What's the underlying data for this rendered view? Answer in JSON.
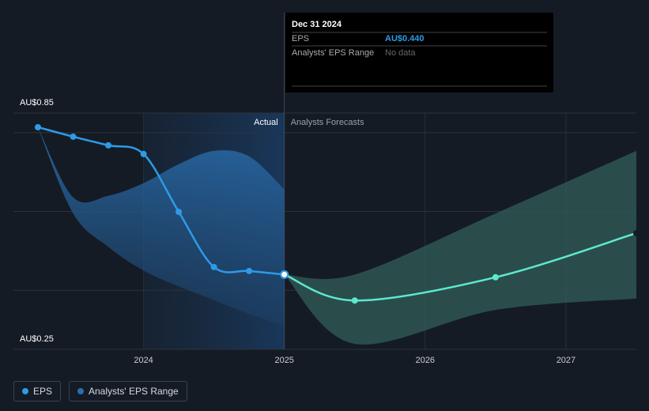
{
  "chart_data": {
    "type": "line",
    "x": [
      2023.25,
      2023.5,
      2023.75,
      2024,
      2024.25,
      2024.5,
      2024.75,
      2025
    ],
    "series": [
      {
        "name": "EPS",
        "color": "#2d9be8",
        "values": [
          0.814,
          0.79,
          0.768,
          0.746,
          0.599,
          0.459,
          0.449,
          0.44
        ]
      }
    ],
    "forecast": {
      "x": [
        2025,
        2025.5,
        2026.5,
        2027.5
      ],
      "values": [
        0.44,
        0.374,
        0.433,
        0.545
      ],
      "color": "#5ee8d0"
    },
    "range": {
      "name": "Analysts' EPS Range",
      "color": "#2a6fb0",
      "x": [
        2023.25,
        2023.5,
        2023.75,
        2024,
        2024.25,
        2024.5,
        2024.75,
        2025
      ],
      "low": [
        0.814,
        0.595,
        0.51,
        0.45,
        0.41,
        0.375,
        0.34,
        0.31
      ],
      "high": [
        0.814,
        0.636,
        0.64,
        0.672,
        0.72,
        0.754,
        0.74,
        0.656
      ]
    },
    "forecast_range": {
      "color": "#2f5a55",
      "x": [
        2025,
        2025.5,
        2026.5,
        2027.5
      ],
      "low": [
        0.44,
        0.264,
        0.35,
        0.379
      ],
      "high": [
        0.44,
        0.44,
        0.595,
        0.754
      ]
    },
    "xlim": [
      2023.076,
      2027.5
    ],
    "xticks": [
      2024,
      2025,
      2026,
      2027
    ],
    "ylim": [
      0.25,
      0.85
    ],
    "yticks": [
      {
        "value": 0.25,
        "label": "AU$0.25"
      },
      {
        "value": 0.85,
        "label": "AU$0.85"
      }
    ],
    "grid": [
      0.4,
      0.6,
      0.8
    ],
    "actual_label": "Actual",
    "forecast_label": "Analysts Forecasts",
    "tooltip": {
      "date": "Dec 31 2024",
      "rows": [
        {
          "label": "EPS",
          "value": "AU$0.440"
        },
        {
          "label": "Analysts' EPS Range",
          "value": "No data"
        }
      ]
    }
  }
}
